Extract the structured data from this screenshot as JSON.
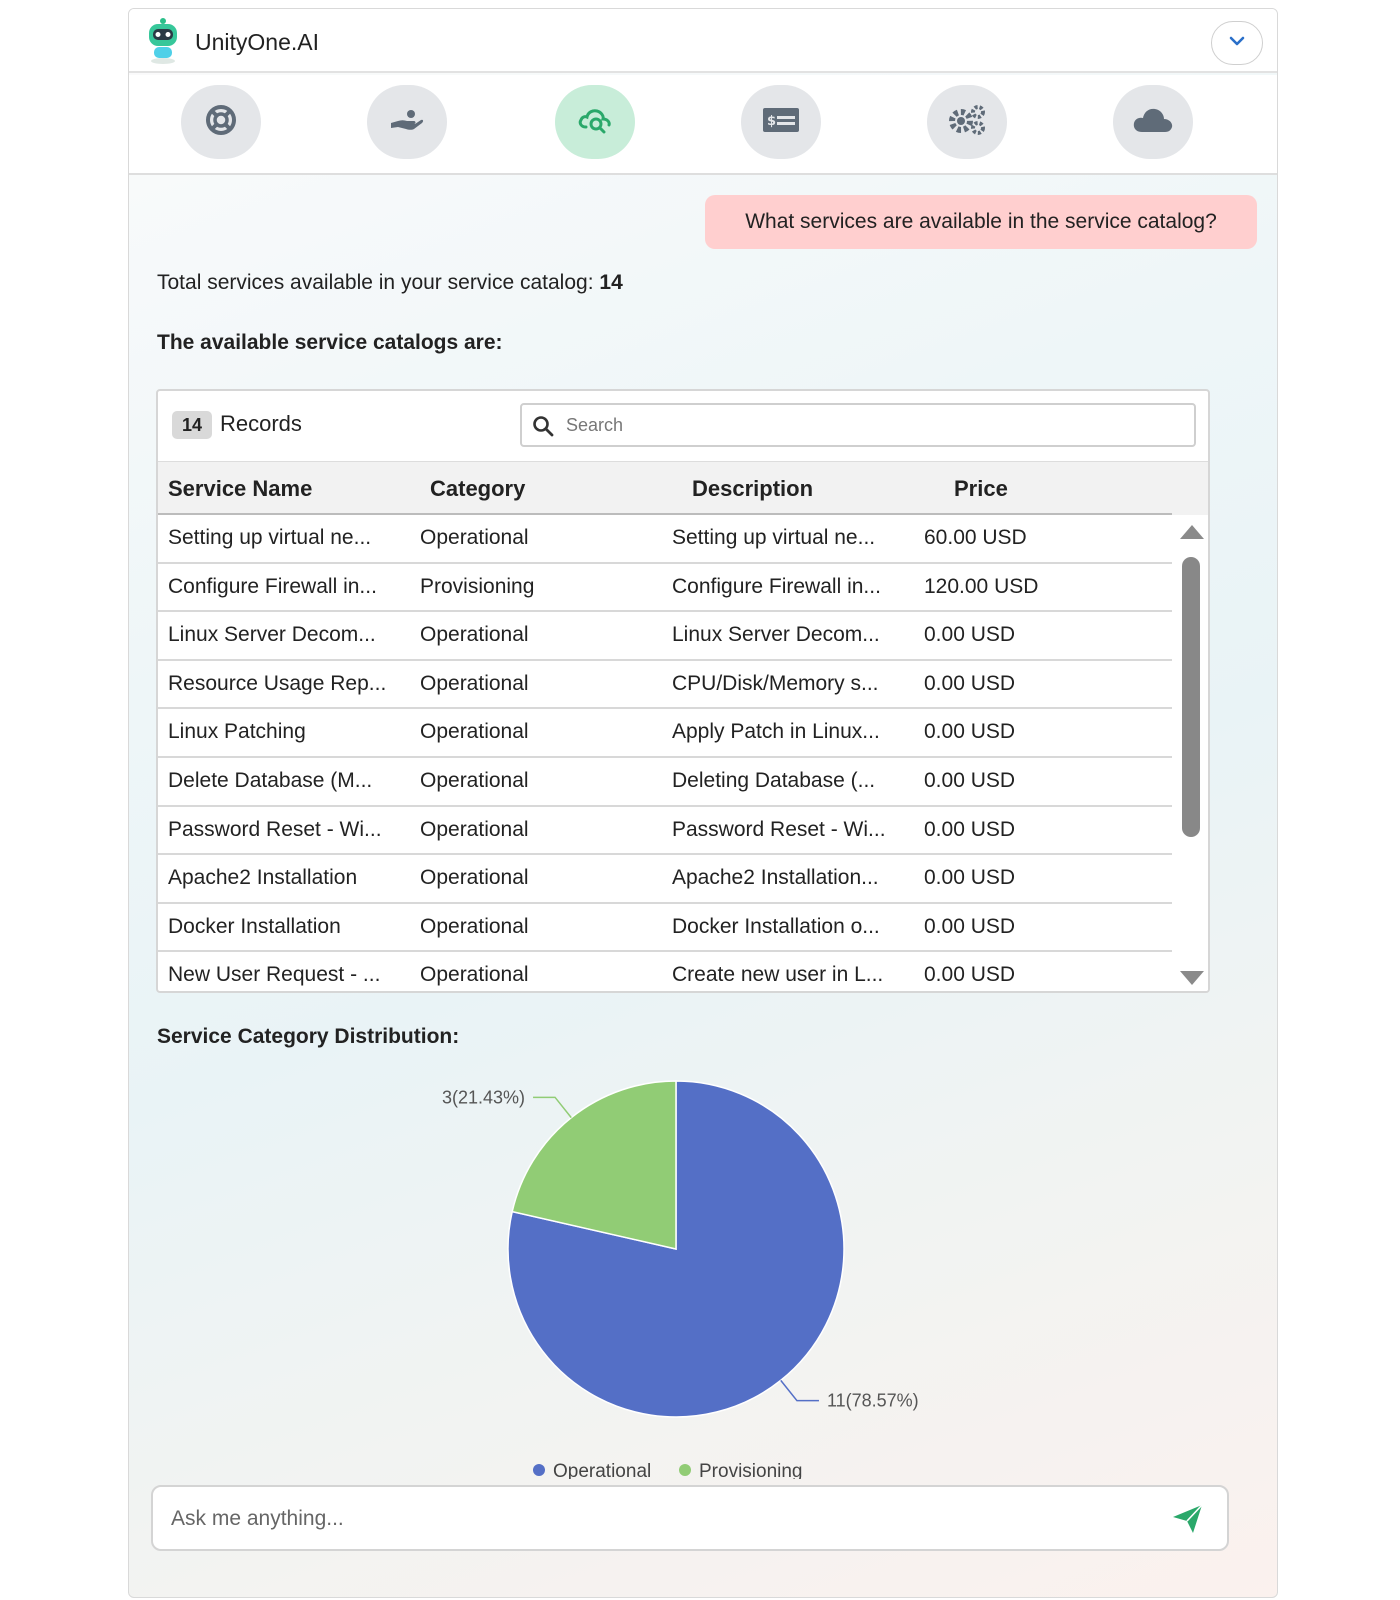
{
  "app": {
    "title": "UnityOne.AI"
  },
  "nav": {
    "items": [
      {
        "icon": "lifebuoy-icon"
      },
      {
        "icon": "hand-service-icon"
      },
      {
        "icon": "cloud-service-icon",
        "active": true
      },
      {
        "icon": "billing-icon"
      },
      {
        "icon": "settings-gears-icon"
      },
      {
        "icon": "cloud-icon"
      }
    ],
    "active_color": "#c8edd9"
  },
  "chat": {
    "user_message": "What services are available in the service catalog?",
    "total_prefix": "Total services available in your service catalog:",
    "total_count": "14",
    "section_title": "The available service catalogs are:"
  },
  "table": {
    "records_count": "14",
    "records_label": "Records",
    "search_placeholder": "Search",
    "columns": [
      "Service Name",
      "Category",
      "Description",
      "Price"
    ],
    "rows": [
      [
        "Setting up virtual ne...",
        "Operational",
        "Setting up virtual ne...",
        "60.00 USD"
      ],
      [
        "Configure Firewall in...",
        "Provisioning",
        "Configure Firewall in...",
        "120.00 USD"
      ],
      [
        "Linux Server Decom...",
        "Operational",
        "Linux Server Decom...",
        "0.00 USD"
      ],
      [
        "Resource Usage Rep...",
        "Operational",
        "CPU/Disk/Memory s...",
        "0.00 USD"
      ],
      [
        "Linux Patching",
        "Operational",
        "Apply Patch in Linux...",
        "0.00 USD"
      ],
      [
        "Delete Database (M...",
        "Operational",
        "Deleting Database (...",
        "0.00 USD"
      ],
      [
        "Password Reset - Wi...",
        "Operational",
        "Password Reset - Wi...",
        "0.00 USD"
      ],
      [
        "Apache2 Installation",
        "Operational",
        "Apache2 Installation...",
        "0.00 USD"
      ],
      [
        "Docker Installation",
        "Operational",
        "Docker Installation o...",
        "0.00 USD"
      ],
      [
        "New User Request - ...",
        "Operational",
        "Create new user in L...",
        "0.00 USD"
      ]
    ]
  },
  "chart_title": "Service Category Distribution:",
  "chart_data": {
    "type": "pie",
    "categories": [
      "Operational",
      "Provisioning"
    ],
    "values": [
      11,
      3
    ],
    "labels": [
      "11(78.57%)",
      "3(21.43%)"
    ],
    "colors": [
      "#546fc6",
      "#91cc75"
    ],
    "legend": "bottom"
  },
  "composer": {
    "placeholder": "Ask me anything..."
  }
}
